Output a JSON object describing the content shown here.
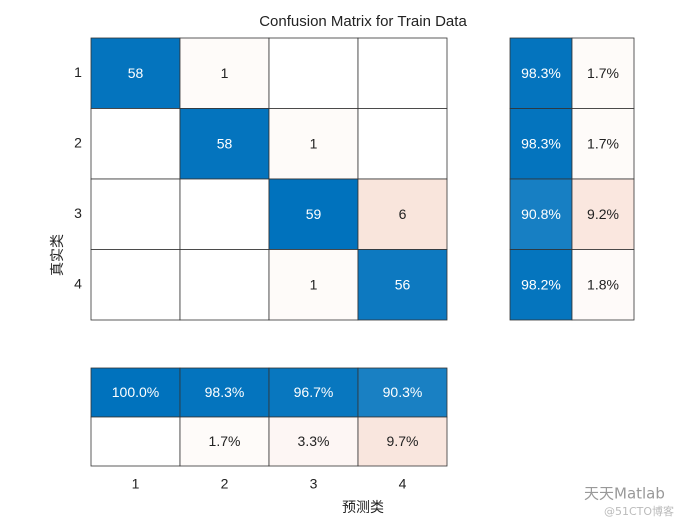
{
  "chart_data": {
    "type": "confusion_matrix",
    "title": "Confusion Matrix for Train Data",
    "x_label": "预测类",
    "y_label": "真实类",
    "categories": [
      "1",
      "2",
      "3",
      "4"
    ],
    "matrix": [
      [
        58,
        1,
        null,
        null
      ],
      [
        null,
        58,
        1,
        null
      ],
      [
        null,
        null,
        59,
        6
      ],
      [
        null,
        null,
        1,
        56
      ]
    ],
    "row_summary": {
      "values": [
        [
          98.3,
          1.7
        ],
        [
          98.3,
          1.7
        ],
        [
          90.8,
          9.2
        ],
        [
          98.2,
          1.8
        ]
      ],
      "value_labels": [
        [
          "98.3%",
          "1.7%"
        ],
        [
          "98.3%",
          "1.7%"
        ],
        [
          "90.8%",
          "9.2%"
        ],
        [
          "98.2%",
          "1.8%"
        ]
      ]
    },
    "column_summary": {
      "values": [
        [
          100.0,
          98.3,
          96.7,
          90.3
        ],
        [
          null,
          1.7,
          3.3,
          9.7
        ]
      ],
      "value_labels": [
        [
          "100.0%",
          "98.3%",
          "96.7%",
          "90.3%"
        ],
        [
          null,
          "1.7%",
          "3.3%",
          "9.7%"
        ]
      ]
    },
    "correct_color": "#0072bd",
    "incorrect_color": "#d95319",
    "watermark": [
      "天天Matlab",
      "@51CTO博客"
    ]
  }
}
